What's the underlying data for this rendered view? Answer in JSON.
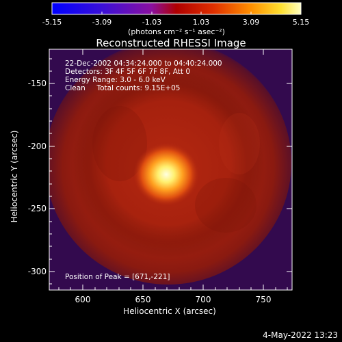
{
  "colorbar": {
    "ticks": [
      "-5.15",
      "-3.09",
      "-1.03",
      "1.03",
      "3.09",
      "5.15"
    ],
    "unit_label": "(photons cm⁻² s⁻¹ asec⁻²)"
  },
  "plot": {
    "title": "Reconstructed RHESSI Image",
    "x_axis_label": "Heliocentric X (arcsec)",
    "y_axis_label": "Heliocentric Y (arcsec)",
    "x_ticks": [
      "600",
      "650",
      "700",
      "750"
    ],
    "y_ticks": [
      "-150",
      "-200",
      "-250",
      "-300"
    ],
    "info_lines": [
      "22-Dec-2002 04:34:24.000 to 04:40:24.000",
      "Detectors: 3F 4F 5F 6F 7F 8F, Att 0",
      "Energy Range: 3.0 - 6.0 keV",
      "Clean     Total counts: 9.15E+05"
    ],
    "peak_label": "Position of Peak = [671,-221]"
  },
  "footer": {
    "timestamp": "4-May-2022 13:23"
  }
}
